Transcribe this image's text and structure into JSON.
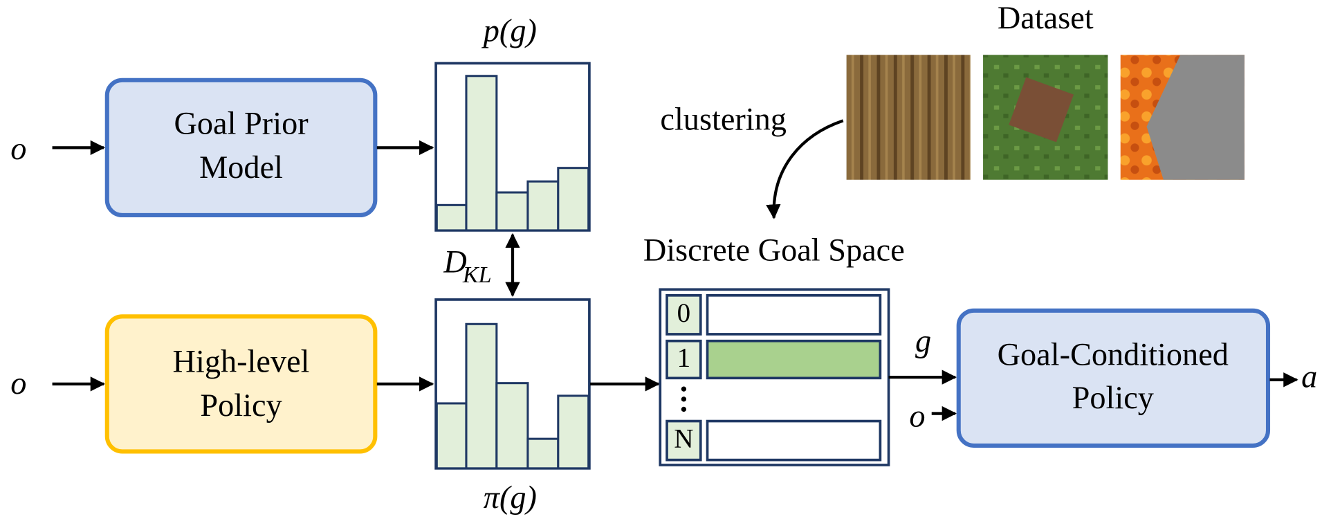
{
  "inputs": {
    "prior_obs": "o",
    "policy_obs": "o",
    "conditioned_obs": "o"
  },
  "goal_prior": {
    "line1": "Goal Prior",
    "line2": "Model"
  },
  "high_level": {
    "line1": "High-level",
    "line2": "Policy"
  },
  "prior_hist": {
    "label": "p(g)"
  },
  "policy_hist": {
    "label": "π(g)"
  },
  "kl": {
    "main": "D",
    "sub": "KL"
  },
  "dataset": {
    "title": "Dataset",
    "clustering": "clustering"
  },
  "goal_space": {
    "title": "Discrete Goal Space",
    "rows": [
      "0",
      "1",
      "N"
    ]
  },
  "goal_label": "g",
  "conditioned": {
    "line1": "Goal-Conditioned",
    "line2": "Policy"
  },
  "action": "a"
}
